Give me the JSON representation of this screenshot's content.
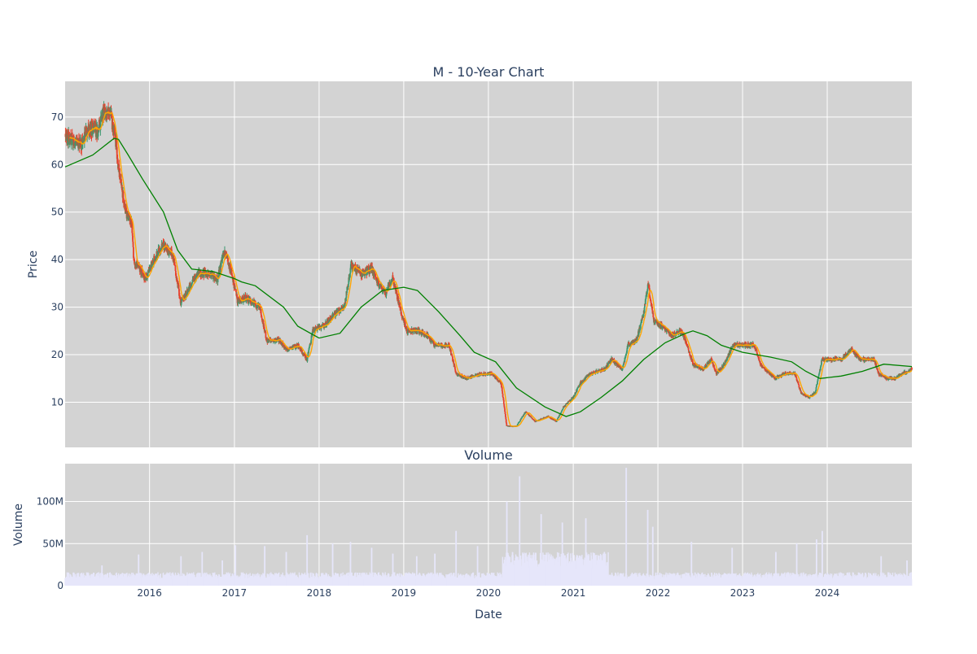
{
  "colors": {
    "plot_bg": "#d3d3d3",
    "grid": "#ffffff",
    "up": "#3d9970",
    "down": "#e8412c",
    "ma_short": "#ffa500",
    "ma_long": "#008000",
    "volume": "#e6e6fa",
    "text": "#2a3f5f"
  },
  "chart_data": [
    {
      "type": "candlestick",
      "title": "M - 10-Year Chart",
      "ylabel": "Price",
      "x_range": [
        "2015-01-02",
        "2024-12-31"
      ],
      "ylim": [
        0.5,
        77.5
      ],
      "y_ticks": [
        10,
        20,
        30,
        40,
        50,
        60,
        70
      ],
      "grid": true,
      "legend": "none",
      "series": [
        {
          "kind": "candles",
          "approx_price_path": [
            [
              "2015-01-02",
              66
            ],
            [
              "2015-03-15",
              64
            ],
            [
              "2015-04-10",
              68
            ],
            [
              "2015-05-20",
              67
            ],
            [
              "2015-06-20",
              71
            ],
            [
              "2015-07-15",
              71
            ],
            [
              "2015-08-05",
              66
            ],
            [
              "2015-08-25",
              58
            ],
            [
              "2015-09-20",
              50
            ],
            [
              "2015-10-15",
              48
            ],
            [
              "2015-10-25",
              40
            ],
            [
              "2015-12-15",
              36
            ],
            [
              "2016-01-20",
              40
            ],
            [
              "2016-02-25",
              43
            ],
            [
              "2016-04-10",
              41
            ],
            [
              "2016-05-15",
              31
            ],
            [
              "2016-06-20",
              34
            ],
            [
              "2016-07-25",
              37
            ],
            [
              "2016-09-10",
              37
            ],
            [
              "2016-10-20",
              36
            ],
            [
              "2016-11-20",
              42
            ],
            [
              "2016-12-20",
              37
            ],
            [
              "2017-01-15",
              31
            ],
            [
              "2017-02-15",
              32
            ],
            [
              "2017-04-20",
              30
            ],
            [
              "2017-05-20",
              23
            ],
            [
              "2017-07-15",
              23
            ],
            [
              "2017-08-15",
              21
            ],
            [
              "2017-10-01",
              22
            ],
            [
              "2017-11-10",
              19
            ],
            [
              "2017-12-05",
              25
            ],
            [
              "2018-01-20",
              26
            ],
            [
              "2018-03-20",
              29
            ],
            [
              "2018-04-20",
              30
            ],
            [
              "2018-05-20",
              39
            ],
            [
              "2018-07-01",
              37
            ],
            [
              "2018-08-15",
              38
            ],
            [
              "2018-09-15",
              35
            ],
            [
              "2018-10-15",
              33
            ],
            [
              "2018-11-15",
              36
            ],
            [
              "2018-12-20",
              29
            ],
            [
              "2019-01-15",
              25
            ],
            [
              "2019-03-01",
              25
            ],
            [
              "2019-04-15",
              24
            ],
            [
              "2019-05-15",
              22
            ],
            [
              "2019-07-15",
              22
            ],
            [
              "2019-08-15",
              16
            ],
            [
              "2019-10-01",
              15
            ],
            [
              "2019-12-01",
              16
            ],
            [
              "2020-01-15",
              16
            ],
            [
              "2020-02-25",
              14
            ],
            [
              "2020-03-20",
              5
            ],
            [
              "2020-05-01",
              5
            ],
            [
              "2020-06-10",
              8
            ],
            [
              "2020-07-20",
              6
            ],
            [
              "2020-09-15",
              7
            ],
            [
              "2020-10-20",
              6
            ],
            [
              "2020-11-20",
              9
            ],
            [
              "2020-12-31",
              11
            ],
            [
              "2021-02-01",
              14
            ],
            [
              "2021-03-15",
              16
            ],
            [
              "2021-05-15",
              17
            ],
            [
              "2021-06-15",
              19
            ],
            [
              "2021-08-01",
              17
            ],
            [
              "2021-08-25",
              22
            ],
            [
              "2021-10-01",
              23
            ],
            [
              "2021-11-01",
              29
            ],
            [
              "2021-11-20",
              35
            ],
            [
              "2021-12-15",
              27
            ],
            [
              "2022-01-20",
              26
            ],
            [
              "2022-03-01",
              24
            ],
            [
              "2022-04-10",
              25
            ],
            [
              "2022-05-01",
              23
            ],
            [
              "2022-06-01",
              18
            ],
            [
              "2022-07-15",
              17
            ],
            [
              "2022-08-20",
              19
            ],
            [
              "2022-09-10",
              16
            ],
            [
              "2022-10-15",
              18
            ],
            [
              "2022-11-20",
              22
            ],
            [
              "2023-01-15",
              22
            ],
            [
              "2023-02-20",
              22
            ],
            [
              "2023-03-20",
              18
            ],
            [
              "2023-05-20",
              15
            ],
            [
              "2023-07-01",
              16
            ],
            [
              "2023-08-15",
              16
            ],
            [
              "2023-09-10",
              12
            ],
            [
              "2023-10-15",
              11
            ],
            [
              "2023-11-10",
              12
            ],
            [
              "2023-12-10",
              19
            ],
            [
              "2024-01-20",
              19
            ],
            [
              "2024-03-01",
              19
            ],
            [
              "2024-04-15",
              21
            ],
            [
              "2024-05-20",
              19
            ],
            [
              "2024-07-20",
              19
            ],
            [
              "2024-08-10",
              16
            ],
            [
              "2024-09-15",
              15
            ],
            [
              "2024-10-15",
              15
            ],
            [
              "2024-11-20",
              16
            ],
            [
              "2024-12-31",
              17
            ]
          ]
        },
        {
          "kind": "line",
          "color_key": "ma_long",
          "points": [
            [
              "2015-01-02",
              59.5
            ],
            [
              "2015-05-01",
              62
            ],
            [
              "2015-08-01",
              65.5
            ],
            [
              "2015-08-20",
              65.3
            ],
            [
              "2015-10-01",
              62
            ],
            [
              "2015-12-01",
              57
            ],
            [
              "2016-03-01",
              50
            ],
            [
              "2016-05-01",
              42
            ],
            [
              "2016-07-01",
              38
            ],
            [
              "2016-10-01",
              37.5
            ],
            [
              "2017-01-01",
              36
            ],
            [
              "2017-02-01",
              35.3
            ],
            [
              "2017-04-01",
              34.5
            ],
            [
              "2017-08-01",
              30
            ],
            [
              "2017-10-01",
              26
            ],
            [
              "2018-01-01",
              23.5
            ],
            [
              "2018-04-01",
              24.5
            ],
            [
              "2018-07-01",
              30
            ],
            [
              "2018-10-01",
              33.5
            ],
            [
              "2019-01-01",
              34.2
            ],
            [
              "2019-03-01",
              33.5
            ],
            [
              "2019-06-01",
              29
            ],
            [
              "2019-09-01",
              24
            ],
            [
              "2019-11-01",
              20.5
            ],
            [
              "2020-02-01",
              18.5
            ],
            [
              "2020-05-01",
              13
            ],
            [
              "2020-09-01",
              9
            ],
            [
              "2020-12-01",
              7
            ],
            [
              "2021-02-01",
              8
            ],
            [
              "2021-05-01",
              11
            ],
            [
              "2021-08-01",
              14.5
            ],
            [
              "2021-11-01",
              19
            ],
            [
              "2022-02-01",
              22.5
            ],
            [
              "2022-05-01",
              24.5
            ],
            [
              "2022-06-01",
              25
            ],
            [
              "2022-08-01",
              24
            ],
            [
              "2022-10-01",
              22
            ],
            [
              "2023-01-01",
              20.5
            ],
            [
              "2023-05-01",
              19.5
            ],
            [
              "2023-08-01",
              18.5
            ],
            [
              "2023-10-01",
              16.5
            ],
            [
              "2023-12-01",
              15
            ],
            [
              "2024-03-01",
              15.5
            ],
            [
              "2024-06-01",
              16.5
            ],
            [
              "2024-09-01",
              18
            ],
            [
              "2024-12-31",
              17.5
            ]
          ]
        }
      ]
    },
    {
      "type": "bar",
      "title": "Volume",
      "xlabel": "Date",
      "ylabel": "Volume",
      "x_range": [
        "2015-01-02",
        "2024-12-31"
      ],
      "ylim": [
        0,
        145000000
      ],
      "y_ticks": [
        0,
        50000000,
        100000000
      ],
      "y_tick_labels": [
        "0",
        "50M",
        "100M"
      ],
      "x_tick_labels": [
        "2016",
        "2017",
        "2018",
        "2019",
        "2020",
        "2021",
        "2022",
        "2023",
        "2024"
      ],
      "grid": true,
      "legend": "none",
      "approx_volume_spikes": [
        [
          "2015-06-10",
          24000000
        ],
        [
          "2015-11-15",
          37000000
        ],
        [
          "2016-05-15",
          35000000
        ],
        [
          "2016-08-15",
          40000000
        ],
        [
          "2016-11-10",
          30000000
        ],
        [
          "2017-01-05",
          48000000
        ],
        [
          "2017-05-12",
          47000000
        ],
        [
          "2017-08-12",
          40000000
        ],
        [
          "2017-11-10",
          60000000
        ],
        [
          "2018-02-28",
          50000000
        ],
        [
          "2018-05-16",
          52000000
        ],
        [
          "2018-08-15",
          45000000
        ],
        [
          "2018-11-15",
          38000000
        ],
        [
          "2019-02-26",
          35000000
        ],
        [
          "2019-05-15",
          38000000
        ],
        [
          "2019-08-15",
          65000000
        ],
        [
          "2019-11-15",
          47000000
        ],
        [
          "2020-03-20",
          100000000
        ],
        [
          "2020-05-15",
          130000000
        ],
        [
          "2020-08-15",
          85000000
        ],
        [
          "2020-11-15",
          75000000
        ],
        [
          "2021-02-25",
          80000000
        ],
        [
          "2021-05-15",
          40000000
        ],
        [
          "2021-08-18",
          140000000
        ],
        [
          "2021-11-18",
          90000000
        ],
        [
          "2021-12-10",
          70000000
        ],
        [
          "2022-05-26",
          52000000
        ],
        [
          "2022-11-17",
          45000000
        ],
        [
          "2023-05-25",
          40000000
        ],
        [
          "2023-08-22",
          50000000
        ],
        [
          "2023-11-16",
          55000000
        ],
        [
          "2023-12-10",
          65000000
        ],
        [
          "2024-08-21",
          35000000
        ],
        [
          "2024-12-10",
          30000000
        ]
      ]
    }
  ]
}
